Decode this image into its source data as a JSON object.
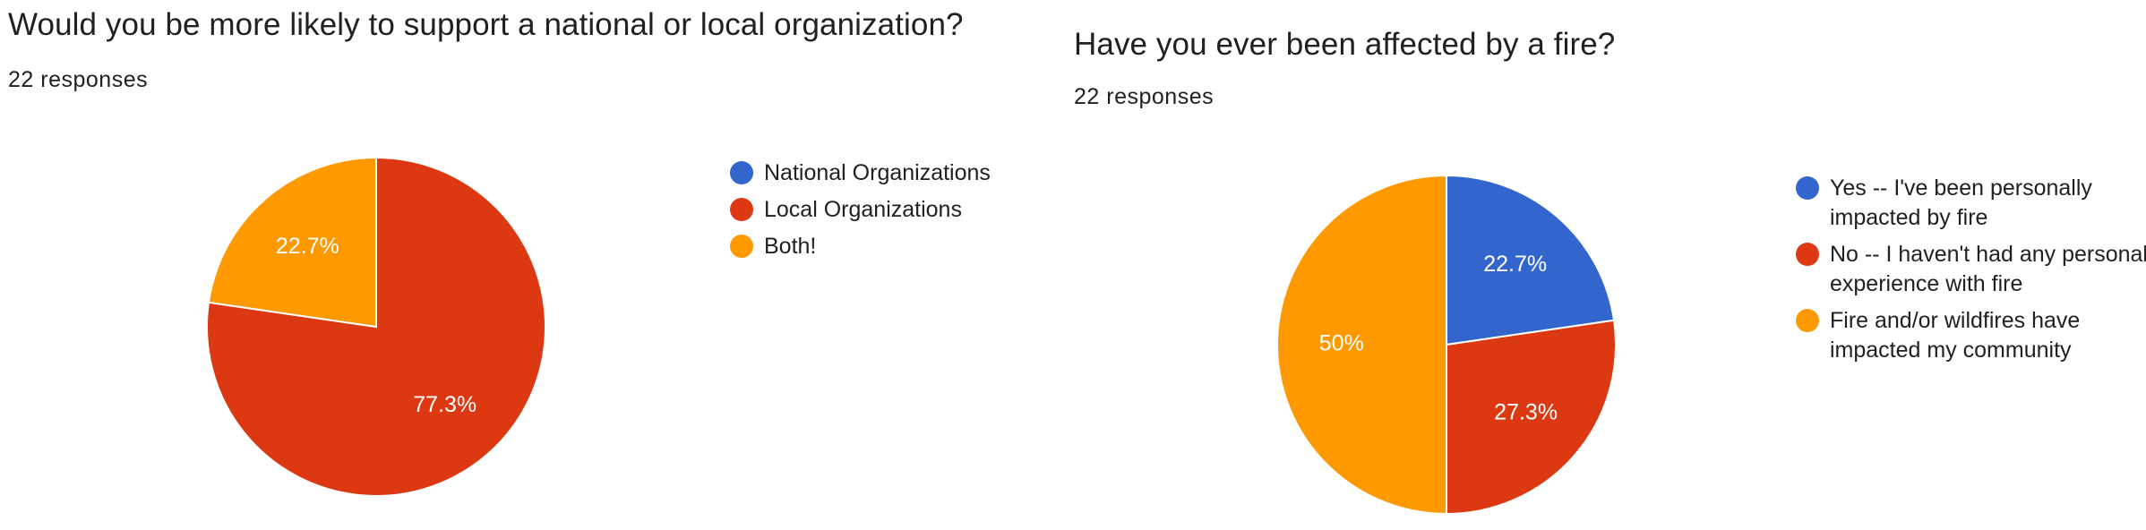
{
  "charts": [
    {
      "title": "Would you be more likely to support a national or local organization?",
      "responses": "22 responses"
    },
    {
      "title": "Have you ever been affected by a fire?",
      "responses": "22 responses"
    }
  ],
  "chart_data": [
    {
      "type": "pie",
      "title": "Would you be more likely to support a national or local organization?",
      "categories": [
        "National Organizations",
        "Local Organizations",
        "Both!"
      ],
      "values": [
        0,
        77.3,
        22.7
      ],
      "labels": [
        "",
        "77.3%",
        "22.7%"
      ],
      "colors": [
        "#3366cc",
        "#dc3912",
        "#ff9900"
      ],
      "legend_position": "right"
    },
    {
      "type": "pie",
      "title": "Have you ever been affected by a fire?",
      "categories": [
        "Yes -- I've been personally impacted by fire",
        "No -- I haven't had any personal experience with fire",
        "Fire and/or wildfires have impacted my community"
      ],
      "values": [
        22.7,
        27.3,
        50
      ],
      "labels": [
        "22.7%",
        "27.3%",
        "50%"
      ],
      "colors": [
        "#3366cc",
        "#dc3912",
        "#ff9900"
      ],
      "legend_position": "right"
    }
  ]
}
